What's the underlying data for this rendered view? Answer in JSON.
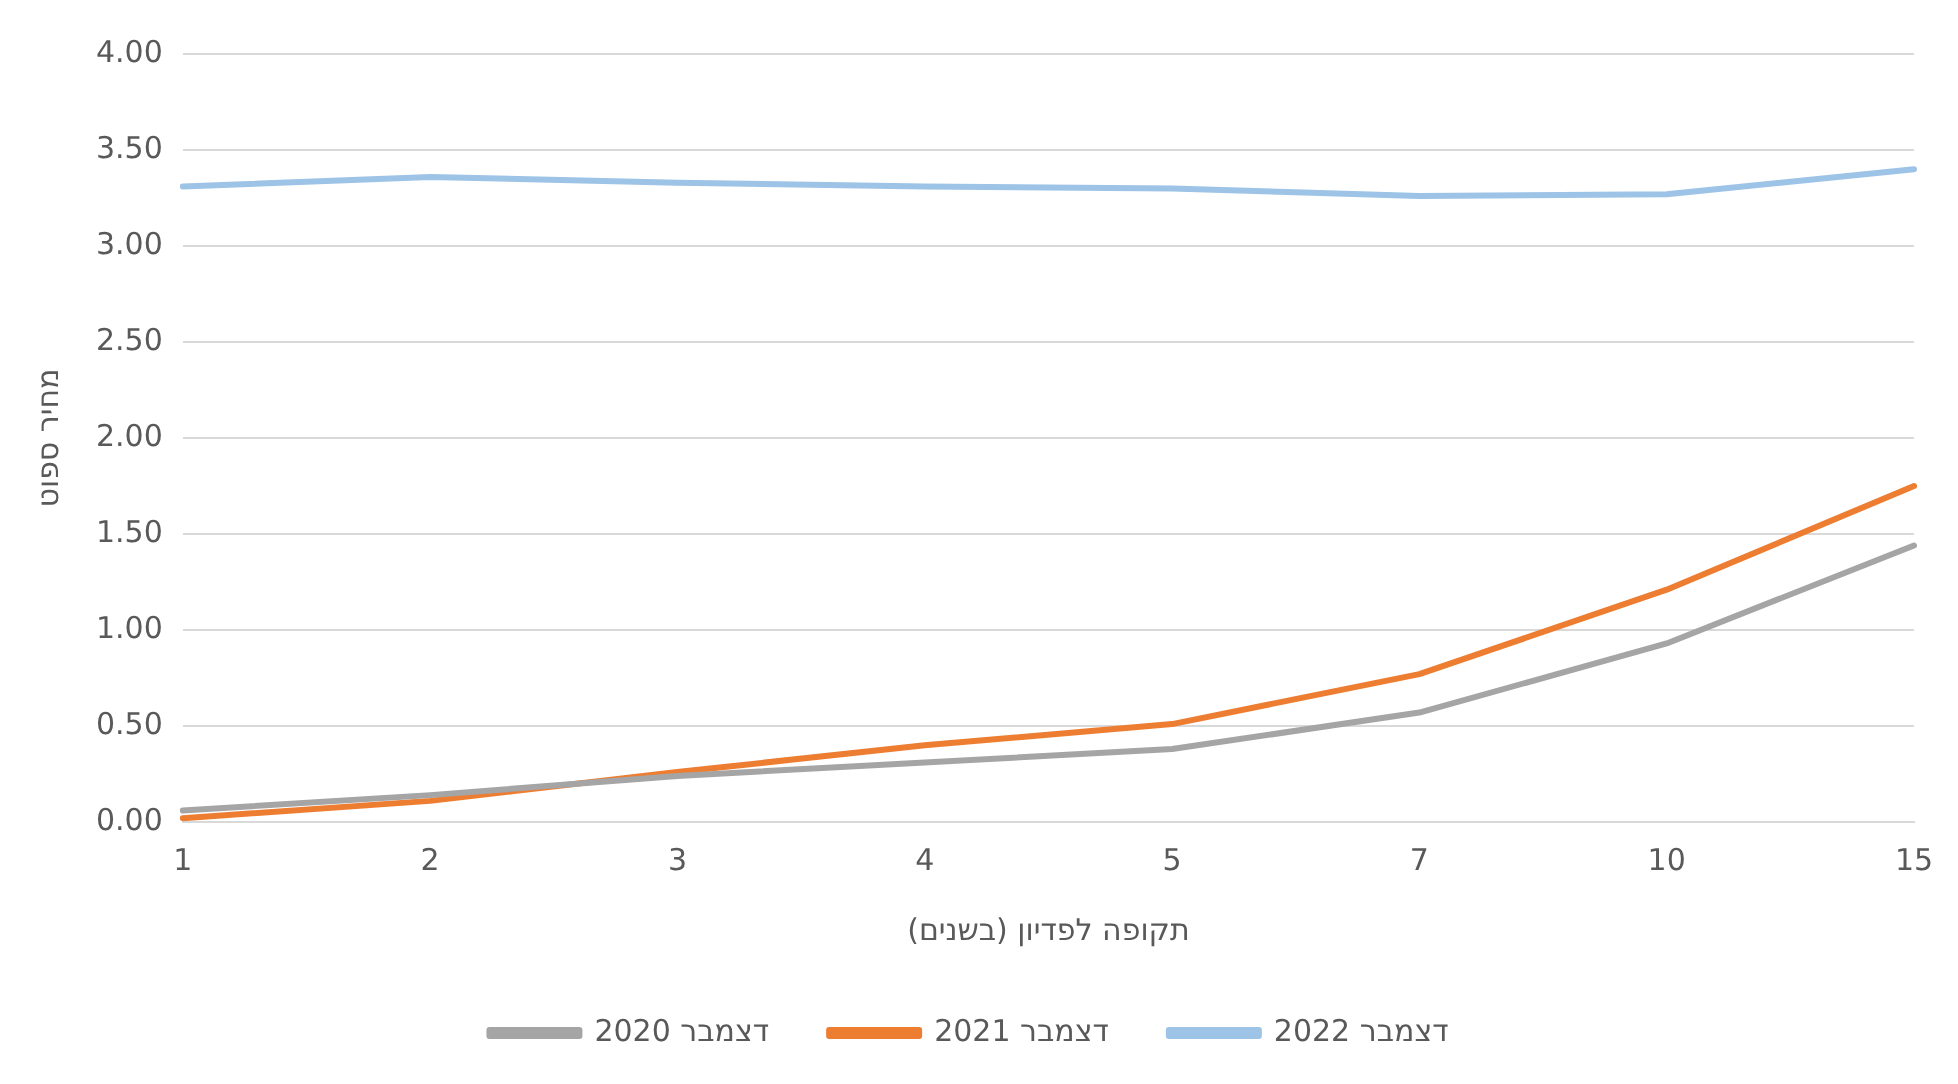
{
  "chart_data": {
    "type": "line",
    "xlabel": "תקופה לפדיון (בשנים)",
    "ylabel": "מחיר ספוט",
    "categories": [
      "1",
      "2",
      "3",
      "4",
      "5",
      "7",
      "10",
      "15"
    ],
    "series": [
      {
        "name": "דצמבר 2020",
        "color": "#a5a5a5",
        "values": [
          0.06,
          0.14,
          0.24,
          0.31,
          0.38,
          0.57,
          0.93,
          1.44
        ]
      },
      {
        "name": "דצמבר 2021",
        "color": "#ed7d31",
        "values": [
          0.02,
          0.11,
          0.26,
          0.4,
          0.51,
          0.77,
          1.21,
          1.75
        ]
      },
      {
        "name": "דצמבר 2022",
        "color": "#9dc3e6",
        "values": [
          3.31,
          3.36,
          3.33,
          3.31,
          3.3,
          3.26,
          3.27,
          3.4
        ]
      }
    ],
    "ylim": [
      0,
      4
    ],
    "yticks": [
      {
        "value": 0,
        "label": "0.00"
      },
      {
        "value": 0.5,
        "label": "0.50"
      },
      {
        "value": 1,
        "label": "1.00"
      },
      {
        "value": 1.5,
        "label": "1.50"
      },
      {
        "value": 2,
        "label": "2.00"
      },
      {
        "value": 2.5,
        "label": "2.50"
      },
      {
        "value": 3,
        "label": "3.00"
      },
      {
        "value": 3.5,
        "label": "3.50"
      },
      {
        "value": 4,
        "label": "4.00"
      }
    ],
    "grid": "y",
    "legend": "bottom",
    "marker": "none",
    "line_style": "solid"
  }
}
